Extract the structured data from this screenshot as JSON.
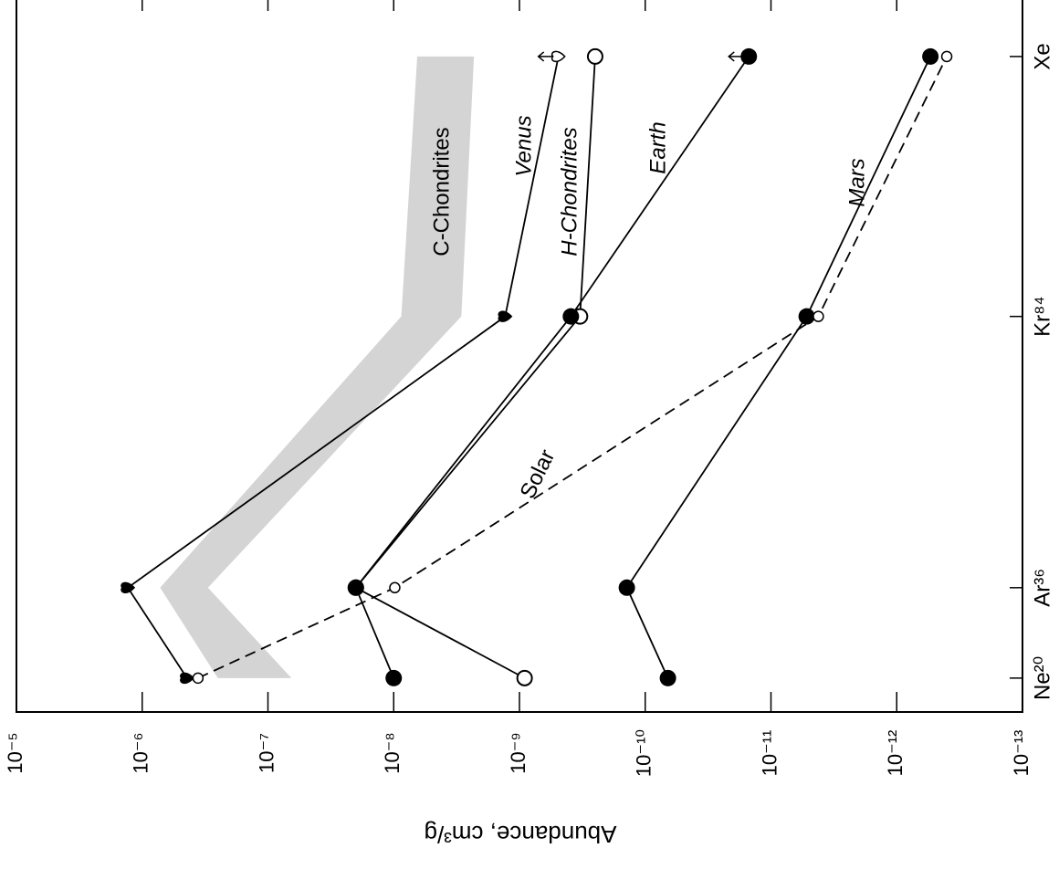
{
  "chart_data": {
    "type": "line",
    "y_label": "Abundance, cm³/g",
    "log_scale": true,
    "x": [
      20,
      36,
      84,
      130
    ],
    "xlim": [
      14,
      140
    ],
    "xticks": [
      {
        "value": 20,
        "label": "Ne²⁰"
      },
      {
        "value": 36,
        "label": "Ar³⁶"
      },
      {
        "value": 84,
        "label": "Kr⁸⁴"
      },
      {
        "value": 130,
        "label": "Xe"
      }
    ],
    "ylim": [
      1e-05,
      1e-13
    ],
    "yticks": [
      {
        "value": 1e-05,
        "label": "10⁻⁵"
      },
      {
        "value": 1e-06,
        "label": "10⁻⁶"
      },
      {
        "value": 1e-07,
        "label": "10⁻⁷"
      },
      {
        "value": 1e-08,
        "label": "10⁻⁸"
      },
      {
        "value": 1e-09,
        "label": "10⁻⁹"
      },
      {
        "value": 1e-10,
        "label": "10⁻¹⁰"
      },
      {
        "value": 1e-11,
        "label": "10⁻¹¹"
      },
      {
        "value": 1e-12,
        "label": "10⁻¹²"
      },
      {
        "value": 1e-13,
        "label": "10⁻¹³"
      }
    ],
    "band": {
      "name": "C-Chondrites",
      "color": "#d4d4d4",
      "upper": [
        2.5e-07,
        7.2e-07,
        8.7e-09,
        6.5e-09
      ],
      "lower": [
        6.5e-08,
        3e-07,
        2.9e-09,
        2.3e-09
      ]
    },
    "series": [
      {
        "name": "Venus",
        "color": "#000000",
        "marker": "heart",
        "dash": false,
        "limits": [
          false,
          false,
          false,
          true
        ],
        "values": [
          4.4e-07,
          1.3e-06,
          1.3e-09,
          4.9e-10
        ]
      },
      {
        "name": "H-Chondrites",
        "color": "#000000",
        "marker": "open",
        "dash": false,
        "limits": [
          false,
          false,
          false,
          false
        ],
        "values": [
          9.1e-10,
          2e-08,
          3.3e-10,
          2.5e-10
        ]
      },
      {
        "name": "Earth",
        "color": "#000000",
        "marker": "filled",
        "dash": false,
        "limits": [
          false,
          false,
          false,
          true
        ],
        "values": [
          1e-08,
          2e-08,
          3.9e-10,
          1.5e-11
        ]
      },
      {
        "name": "Mars",
        "color": "#000000",
        "marker": "filled",
        "dash": false,
        "limits": [
          false,
          false,
          false,
          false
        ],
        "values": [
          6.6e-11,
          1.4e-10,
          5.2e-12,
          5.4e-13
        ]
      },
      {
        "name": "Solar",
        "color": "#000000",
        "marker": "small-open",
        "dash": true,
        "limits": [
          false,
          false,
          false,
          false
        ],
        "values": [
          3.6e-07,
          9.8e-09,
          4.2e-12,
          4e-13
        ]
      }
    ]
  }
}
